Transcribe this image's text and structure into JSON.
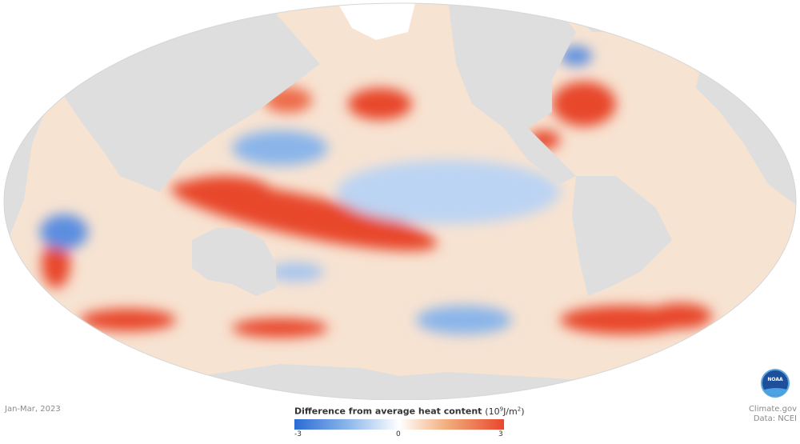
{
  "date_label": "Jan-Mar, 2023",
  "legend": {
    "title": "Difference from average heat content",
    "unit_prefix": "(10",
    "unit_exp1": "9",
    "unit_mid": "J/m",
    "unit_exp2": "2",
    "unit_suffix": ")",
    "min_label": "-3",
    "mid_label": "0",
    "max_label": "3"
  },
  "credits": {
    "line1": "Climate.gov",
    "line2": "Data: NCEI"
  },
  "logo": {
    "text": "NOAA"
  },
  "colors": {
    "ocean_base": "#f7e3d2",
    "land": "#dedede",
    "warm_strong": "#e8472c",
    "warm_mid": "#f2a880",
    "cool_mid": "#8ab5ea",
    "cool_strong": "#2a6bd4"
  }
}
